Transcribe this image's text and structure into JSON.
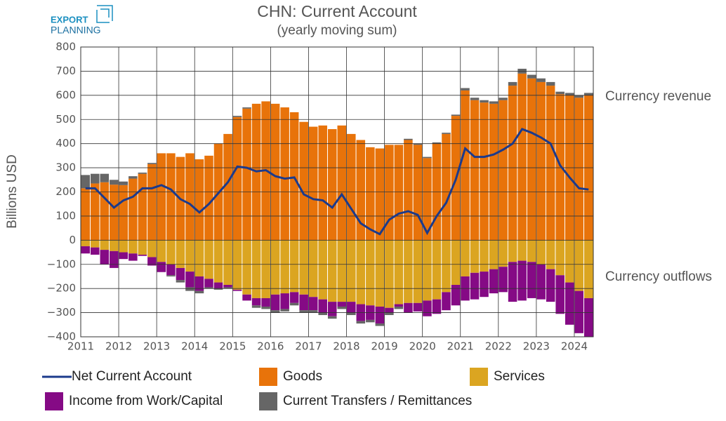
{
  "chart_data": {
    "type": "bar",
    "title": "CHN: Current Account",
    "subtitle": "(yearly moving sum)",
    "logo": [
      "EXPORT",
      "PLANNING"
    ],
    "y_label": "Billions USD",
    "annotations": [
      "Currency revenue",
      "Currency outflows"
    ],
    "stacked": true,
    "grid": true,
    "xlim": [
      2011,
      2024.5
    ],
    "xticks": [
      2011,
      2012,
      2013,
      2014,
      2015,
      2016,
      2017,
      2018,
      2019,
      2020,
      2021,
      2022,
      2023,
      2024
    ],
    "ylim": [
      -400,
      800
    ],
    "yticks": [
      {
        "value": -400,
        "label": "−400"
      },
      {
        "value": -300,
        "label": "−300"
      },
      {
        "value": -200,
        "label": "−200"
      },
      {
        "value": -100,
        "label": "−100"
      },
      0,
      100,
      200,
      300,
      400,
      500,
      600,
      700,
      800
    ],
    "x": [
      2011,
      2011.25,
      2011.5,
      2011.75,
      2012,
      2012.25,
      2012.5,
      2012.75,
      2013,
      2013.25,
      2013.5,
      2013.75,
      2014,
      2014.25,
      2014.5,
      2014.75,
      2015,
      2015.25,
      2015.5,
      2015.75,
      2016,
      2016.25,
      2016.5,
      2016.75,
      2017,
      2017.25,
      2017.5,
      2017.75,
      2018,
      2018.25,
      2018.5,
      2018.75,
      2019,
      2019.25,
      2019.5,
      2019.75,
      2020,
      2020.25,
      2020.5,
      2020.75,
      2021,
      2021.25,
      2021.5,
      2021.75,
      2022,
      2022.25,
      2022.5,
      2022.75,
      2023,
      2023.25,
      2023.5,
      2023.75,
      2024,
      2024.25
    ],
    "series": [
      {
        "name": "Net Current Account",
        "kind": "line",
        "color": "#1b3a8c",
        "values": [
          215,
          215,
          175,
          135,
          165,
          180,
          215,
          215,
          228,
          210,
          170,
          150,
          115,
          150,
          195,
          240,
          305,
          300,
          285,
          290,
          265,
          255,
          260,
          190,
          170,
          165,
          135,
          190,
          130,
          70,
          45,
          25,
          85,
          110,
          120,
          105,
          30,
          100,
          155,
          250,
          380,
          345,
          345,
          355,
          375,
          400,
          460,
          445,
          425,
          400,
          310,
          260,
          215,
          210
        ]
      },
      {
        "name": "Goods",
        "kind": "bar",
        "color": "#e8730a",
        "values": [
          215,
          235,
          240,
          230,
          228,
          255,
          275,
          315,
          360,
          360,
          345,
          360,
          335,
          350,
          400,
          440,
          510,
          545,
          565,
          575,
          565,
          550,
          530,
          490,
          470,
          475,
          460,
          475,
          440,
          415,
          385,
          380,
          395,
          395,
          415,
          395,
          340,
          400,
          440,
          515,
          620,
          580,
          570,
          565,
          580,
          640,
          690,
          670,
          655,
          640,
          605,
          600,
          590,
          600
        ]
      },
      {
        "name": "Services",
        "kind": "bar",
        "color": "#dba521",
        "values": [
          -25,
          -30,
          -40,
          -45,
          -50,
          -55,
          -60,
          -70,
          -90,
          -100,
          -115,
          -130,
          -150,
          -160,
          -175,
          -185,
          -205,
          -225,
          -240,
          -240,
          -225,
          -220,
          -215,
          -225,
          -235,
          -245,
          -255,
          -255,
          -255,
          -265,
          -270,
          -275,
          -280,
          -265,
          -260,
          -260,
          -250,
          -245,
          -215,
          -185,
          -150,
          -135,
          -130,
          -120,
          -110,
          -90,
          -85,
          -90,
          -100,
          -120,
          -145,
          -175,
          -210,
          -240
        ]
      },
      {
        "name": "Income from Work/Capital",
        "kind": "bar",
        "color": "#850a85",
        "values": [
          -30,
          -30,
          -60,
          -70,
          -28,
          -30,
          -5,
          -35,
          -42,
          -45,
          -50,
          -65,
          -60,
          -35,
          -25,
          -10,
          -5,
          -25,
          -30,
          -35,
          -65,
          -65,
          -45,
          -65,
          -55,
          -55,
          -60,
          -20,
          -45,
          -70,
          -60,
          -70,
          -20,
          -10,
          -40,
          -35,
          -65,
          -60,
          -75,
          -85,
          -100,
          -110,
          -105,
          -100,
          -105,
          -165,
          -165,
          -150,
          -145,
          -135,
          -160,
          -175,
          -175,
          -160
        ]
      },
      {
        "name": "Current Transfers / Remittances",
        "kind": "bar",
        "color": "#666666",
        "values": [
          55,
          40,
          35,
          20,
          15,
          10,
          5,
          5,
          0,
          -5,
          -10,
          -15,
          -10,
          -5,
          -5,
          -5,
          5,
          5,
          -10,
          -10,
          -10,
          -10,
          -10,
          -10,
          -10,
          -10,
          -10,
          -10,
          -10,
          -10,
          -10,
          -10,
          -10,
          -10,
          5,
          5,
          5,
          5,
          5,
          5,
          10,
          10,
          10,
          10,
          10,
          15,
          20,
          15,
          15,
          15,
          10,
          10,
          10,
          10
        ]
      }
    ]
  }
}
